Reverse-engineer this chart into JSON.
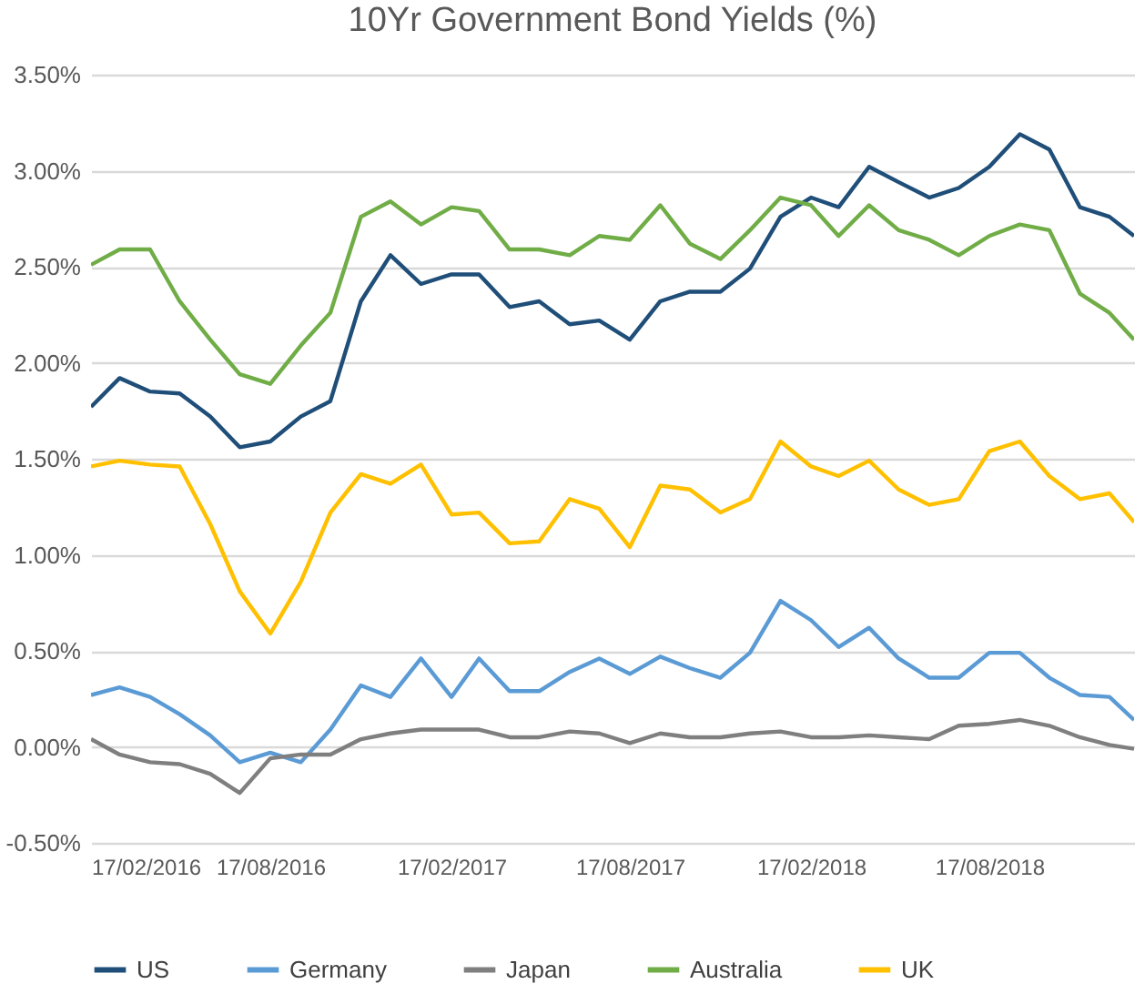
{
  "chart_data": {
    "type": "line",
    "title": "10Yr Government Bond Yields (%)",
    "x": [
      "2016-02-17",
      "2016-03-17",
      "2016-04-17",
      "2016-05-17",
      "2016-06-17",
      "2016-07-17",
      "2016-08-17",
      "2016-09-17",
      "2016-10-17",
      "2016-11-17",
      "2016-12-17",
      "2017-01-17",
      "2017-02-17",
      "2017-03-17",
      "2017-04-17",
      "2017-05-17",
      "2017-06-17",
      "2017-07-17",
      "2017-08-17",
      "2017-09-17",
      "2017-10-17",
      "2017-11-17",
      "2017-12-17",
      "2018-01-17",
      "2018-02-17",
      "2018-03-17",
      "2018-04-17",
      "2018-05-17",
      "2018-06-17",
      "2018-07-17",
      "2018-08-17",
      "2018-09-17",
      "2018-10-17",
      "2018-11-17",
      "2018-12-17",
      "2019-01-11"
    ],
    "series": [
      {
        "name": "US",
        "color": "#1f4e79",
        "values": [
          1.77,
          1.92,
          1.85,
          1.84,
          1.72,
          1.56,
          1.59,
          1.72,
          1.8,
          2.32,
          2.56,
          2.41,
          2.46,
          2.46,
          2.29,
          2.32,
          2.2,
          2.22,
          2.12,
          2.32,
          2.37,
          2.37,
          2.49,
          2.76,
          2.86,
          2.81,
          3.02,
          2.94,
          2.86,
          2.91,
          3.02,
          3.19,
          3.11,
          2.81,
          2.76,
          2.66
        ]
      },
      {
        "name": "Germany",
        "color": "#5b9bd5",
        "values": [
          0.27,
          0.31,
          0.26,
          0.17,
          0.06,
          -0.08,
          -0.03,
          -0.08,
          0.09,
          0.32,
          0.26,
          0.46,
          0.26,
          0.46,
          0.29,
          0.29,
          0.39,
          0.46,
          0.38,
          0.47,
          0.41,
          0.36,
          0.49,
          0.76,
          0.66,
          0.52,
          0.62,
          0.46,
          0.36,
          0.36,
          0.49,
          0.49,
          0.36,
          0.27,
          0.26,
          0.14
        ]
      },
      {
        "name": "Japan",
        "color": "#7f7f7f",
        "values": [
          0.04,
          -0.04,
          -0.08,
          -0.09,
          -0.14,
          -0.24,
          -0.06,
          -0.04,
          -0.04,
          0.04,
          0.07,
          0.09,
          0.09,
          0.09,
          0.05,
          0.05,
          0.08,
          0.07,
          0.02,
          0.07,
          0.05,
          0.05,
          0.07,
          0.08,
          0.05,
          0.05,
          0.06,
          0.05,
          0.04,
          0.11,
          0.12,
          0.14,
          0.11,
          0.05,
          0.01,
          -0.01
        ]
      },
      {
        "name": "Australia",
        "color": "#70ad47",
        "values": [
          2.51,
          2.59,
          2.59,
          2.32,
          2.12,
          1.94,
          1.89,
          2.09,
          2.26,
          2.76,
          2.84,
          2.72,
          2.81,
          2.79,
          2.59,
          2.59,
          2.56,
          2.66,
          2.64,
          2.82,
          2.62,
          2.54,
          2.69,
          2.86,
          2.82,
          2.66,
          2.82,
          2.69,
          2.64,
          2.56,
          2.66,
          2.72,
          2.69,
          2.36,
          2.26,
          2.12
        ]
      },
      {
        "name": "UK",
        "color": "#ffc000",
        "values": [
          1.46,
          1.49,
          1.47,
          1.46,
          1.16,
          0.81,
          0.59,
          0.86,
          1.22,
          1.42,
          1.37,
          1.47,
          1.21,
          1.22,
          1.06,
          1.07,
          1.29,
          1.24,
          1.04,
          1.36,
          1.34,
          1.22,
          1.29,
          1.59,
          1.46,
          1.41,
          1.49,
          1.34,
          1.26,
          1.29,
          1.54,
          1.59,
          1.41,
          1.29,
          1.32,
          1.17
        ]
      }
    ],
    "xlim": [
      "2016-02-17",
      "2019-01-11"
    ],
    "xticks": [
      {
        "value": "2016-02-17",
        "label": "17/02/2016"
      },
      {
        "value": "2016-08-17",
        "label": "17/08/2016"
      },
      {
        "value": "2017-02-17",
        "label": "17/02/2017"
      },
      {
        "value": "2017-08-17",
        "label": "17/08/2017"
      },
      {
        "value": "2018-02-17",
        "label": "17/02/2018"
      },
      {
        "value": "2018-08-17",
        "label": "17/08/2018"
      }
    ],
    "ylim": [
      -0.5,
      3.5
    ],
    "yticks": [
      {
        "value": -0.5,
        "label": "-0.50%"
      },
      {
        "value": 0,
        "label": "0.00%"
      },
      {
        "value": 0.5,
        "label": "0.50%"
      },
      {
        "value": 1,
        "label": "1.00%"
      },
      {
        "value": 1.5,
        "label": "1.50%"
      },
      {
        "value": 2,
        "label": "2.00%"
      },
      {
        "value": 2.5,
        "label": "2.50%"
      },
      {
        "value": 3,
        "label": "3.00%"
      },
      {
        "value": 3.5,
        "label": "3.50%"
      }
    ],
    "grid": "y",
    "legend": "bottom",
    "marker": "none",
    "line_style": "solid"
  }
}
